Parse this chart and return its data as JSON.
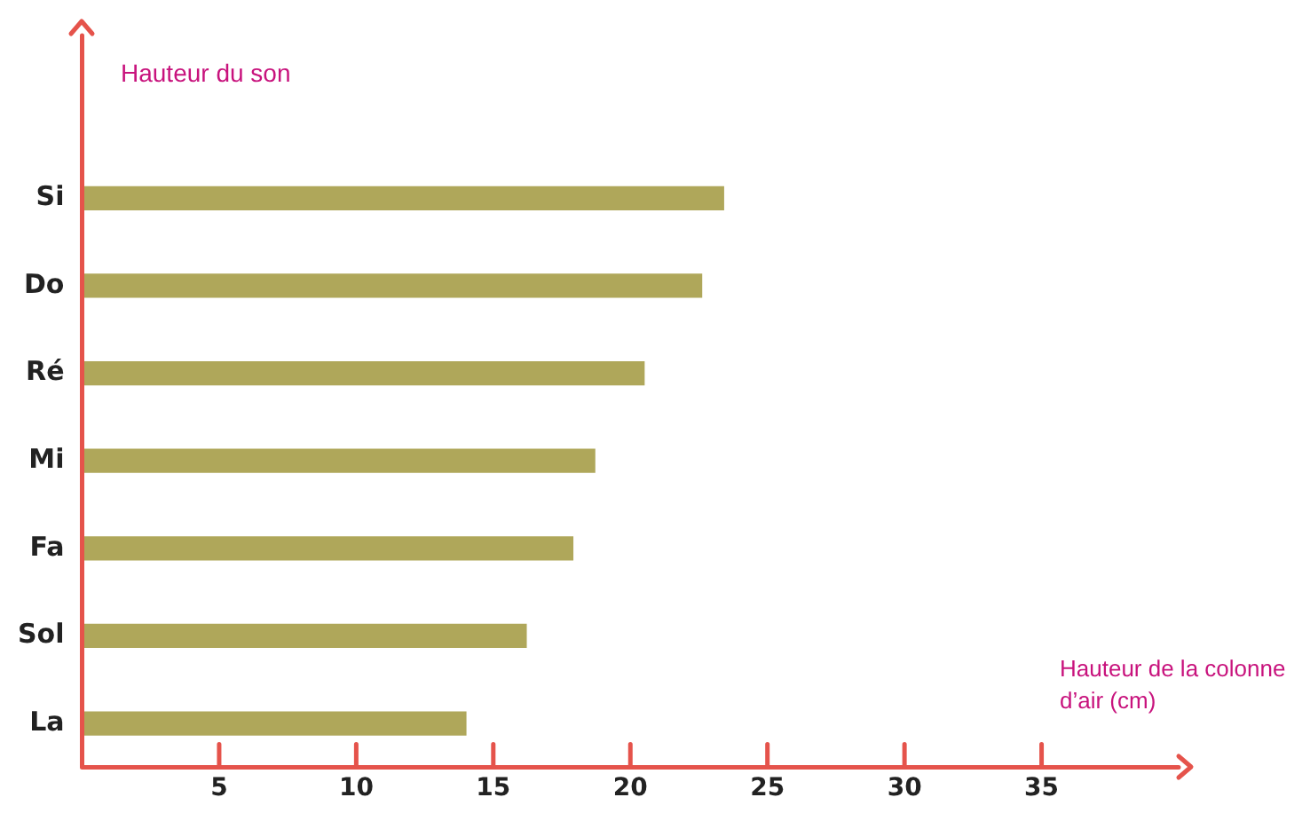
{
  "chart_data": {
    "type": "bar",
    "orientation": "horizontal",
    "xlabel": "Hauteur de la colonne d’air (cm)",
    "ylabel": "Hauteur du son",
    "categories": [
      "Si",
      "Do",
      "Ré",
      "Mi",
      "Fa",
      "Sol",
      "La"
    ],
    "values": [
      23.4,
      22.6,
      20.5,
      18.7,
      17.9,
      16.2,
      14.0
    ],
    "color": "#afa75a",
    "xlim": [
      0,
      40
    ],
    "xticks": [
      5,
      10,
      15,
      20,
      25,
      30,
      35
    ],
    "grid": false,
    "legend": false
  }
}
